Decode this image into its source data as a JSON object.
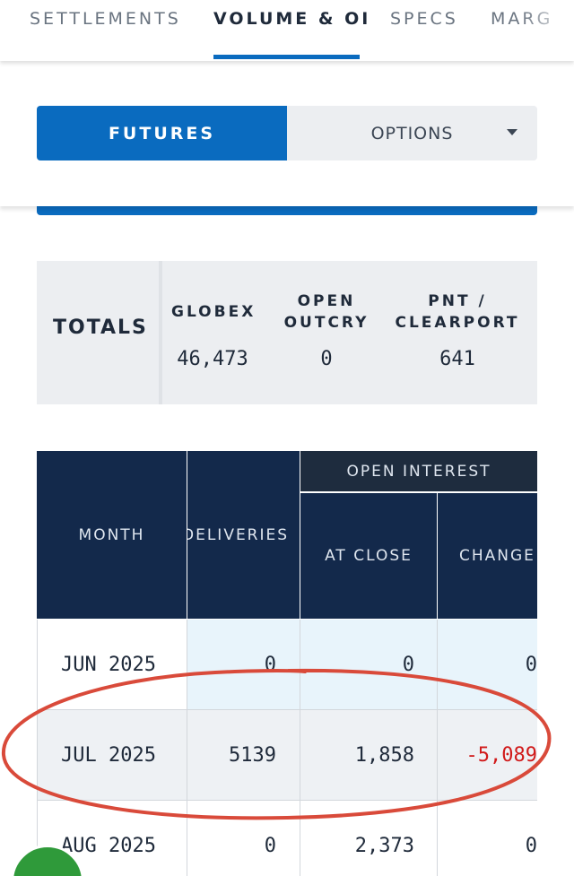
{
  "tabs": [
    {
      "label": "SETTLEMENTS",
      "active": false
    },
    {
      "label": "VOLUME & OI",
      "active": true
    },
    {
      "label": "SPECS",
      "active": false
    },
    {
      "label": "MARG",
      "active": false
    }
  ],
  "toggle": {
    "futures_label": "FUTURES",
    "options_label": "OPTIONS",
    "options_icon": "chevron-down-icon"
  },
  "totals": {
    "label": "TOTALS",
    "columns": [
      {
        "header_line1": "GLOBEX",
        "header_line2": "",
        "value": "46,473"
      },
      {
        "header_line1": "OPEN",
        "header_line2": "OUTCRY",
        "value": "0"
      },
      {
        "header_line1": "PNT /",
        "header_line2": "CLEARPORT",
        "value": "641"
      }
    ]
  },
  "table": {
    "headers": {
      "month": "MONTH",
      "deliveries": "DELIVERIES",
      "open_interest": "OPEN INTEREST",
      "at_close": "AT CLOSE",
      "change": "CHANGE"
    },
    "rows": [
      {
        "month": "JUN 2025",
        "deliveries": "0",
        "at_close": "0",
        "change": "0"
      },
      {
        "month": "JUL 2025",
        "deliveries": "5139",
        "at_close": "1,858",
        "change": "-5,089"
      },
      {
        "month": "AUG 2025",
        "deliveries": "0",
        "at_close": "2,373",
        "change": "0"
      }
    ]
  },
  "colors": {
    "accent": "#0a6bbf",
    "header_navy": "#13294b",
    "negative": "#d11a1a",
    "annotation": "#d94a3a"
  }
}
